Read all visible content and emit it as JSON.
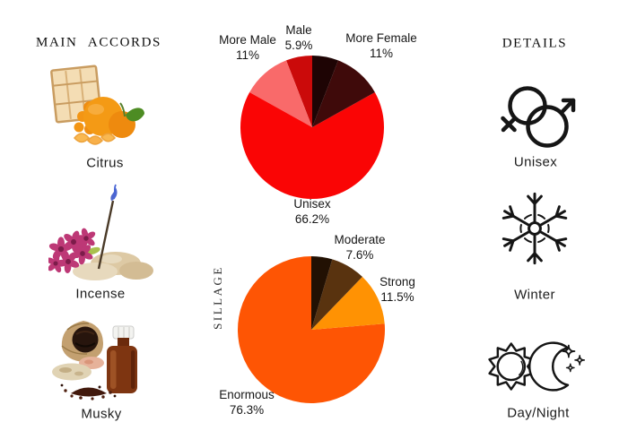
{
  "page_background": "#ffffff",
  "text_color": "#1b1b1b",
  "header_left": "MAIN ACCORDS",
  "header_right": "DETAILS",
  "accords": [
    {
      "name": "Citrus",
      "image": "mandarin-oranges-spilling-from-wooden-crate-photo"
    },
    {
      "name": "Incense",
      "image": "burning-incense-stick-with-stones-and-orchids-photo"
    },
    {
      "name": "Musky",
      "image": "amber-bottle-with-musk-pod-and-granules-photo"
    }
  ],
  "details": [
    {
      "label": "Unisex",
      "icon": "male-female-interlocked-symbols-icon"
    },
    {
      "label": "Winter",
      "icon": "snowflake-icon"
    },
    {
      "label": "Day/Night",
      "icon": "sun-and-crescent-moon-icon"
    }
  ],
  "chart_data": [
    {
      "type": "pie",
      "name": "gender-votes",
      "start_angle_deg": 90,
      "direction": "counterclockwise",
      "legend_position": "outside-labels",
      "slices": [
        {
          "label": "Male",
          "value": 5.9,
          "display": "5.9%",
          "color": "#cb0a0a"
        },
        {
          "label": "More Male",
          "value": 11,
          "display": "11%",
          "color": "#f96a6a"
        },
        {
          "label": "Unisex",
          "value": 66.2,
          "display": "66.2%",
          "color": "#fa0505"
        },
        {
          "label": "More Female",
          "value": 11,
          "display": "11%",
          "color": "#3f0a0a"
        },
        {
          "label": "",
          "value": 5.9,
          "display": "",
          "color": "#1e0404"
        }
      ]
    },
    {
      "type": "pie",
      "name": "sillage-votes",
      "side_label": "SILLAGE",
      "start_angle_deg": 90,
      "direction": "counterclockwise",
      "legend_position": "outside-labels",
      "slices": [
        {
          "label": "Enormous",
          "value": 76.3,
          "display": "76.3%",
          "color": "#fe5504"
        },
        {
          "label": "Strong",
          "value": 11.5,
          "display": "11.5%",
          "color": "#ff9203"
        },
        {
          "label": "Moderate",
          "value": 7.6,
          "display": "7.6%",
          "color": "#59330f"
        },
        {
          "label": "",
          "value": 4.6,
          "display": "",
          "color": "#221103"
        }
      ]
    }
  ]
}
